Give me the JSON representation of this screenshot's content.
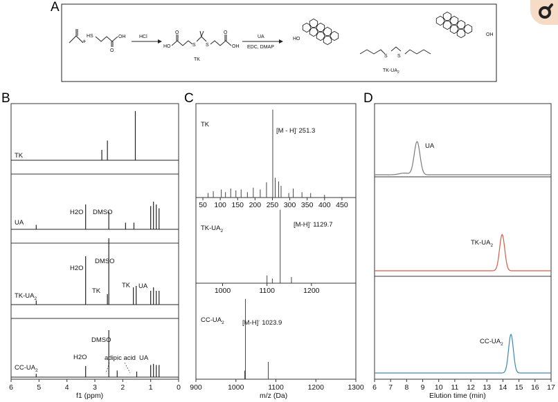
{
  "panels": {
    "a": "A",
    "b": "B",
    "c": "C",
    "d": "D"
  },
  "scheme": {
    "hcl": "HCl",
    "tk": "TK",
    "ua": "UA",
    "reagents": "EDC, DMAP",
    "product": "TK-UA",
    "product_sub": "2",
    "atoms": {
      "ho": "HO",
      "hs": "HS",
      "oh": "OH",
      "o": "O",
      "s": "S",
      "plus": "+"
    }
  },
  "chart_data": [
    {
      "panel": "B",
      "type": "line",
      "title": "",
      "xlabel": "f1 (ppm)",
      "ylabel": "",
      "xlim": [
        6,
        0
      ],
      "xticks": [
        "6",
        "5",
        "4",
        "3",
        "2",
        "1",
        "0"
      ],
      "series": [
        {
          "name": "TK",
          "peaks": [
            {
              "x": 2.75,
              "h": 0.2
            },
            {
              "x": 2.55,
              "h": 0.38
            },
            {
              "x": 1.55,
              "h": 0.95
            }
          ],
          "labels": []
        },
        {
          "name": "UA",
          "peaks": [
            {
              "x": 5.1,
              "h": 0.08
            },
            {
              "x": 3.33,
              "h": 0.45
            },
            {
              "x": 2.5,
              "h": 0.32
            },
            {
              "x": 1.9,
              "h": 0.12
            },
            {
              "x": 1.6,
              "h": 0.12
            },
            {
              "x": 1.0,
              "h": 0.42
            },
            {
              "x": 0.9,
              "h": 0.5
            },
            {
              "x": 0.8,
              "h": 0.45
            },
            {
              "x": 0.7,
              "h": 0.38
            }
          ],
          "labels": [
            "H2O",
            "DMSO"
          ]
        },
        {
          "name": "TK-UA",
          "name_sub": "2",
          "peaks": [
            {
              "x": 5.1,
              "h": 0.06
            },
            {
              "x": 3.33,
              "h": 0.7
            },
            {
              "x": 2.55,
              "h": 0.15
            },
            {
              "x": 2.5,
              "h": 0.96
            },
            {
              "x": 1.62,
              "h": 0.25
            },
            {
              "x": 1.52,
              "h": 0.27
            },
            {
              "x": 1.0,
              "h": 0.2
            },
            {
              "x": 0.9,
              "h": 0.25
            },
            {
              "x": 0.8,
              "h": 0.2
            },
            {
              "x": 0.7,
              "h": 0.2
            }
          ],
          "labels": [
            "H2O",
            "DMSO",
            "TK",
            "TK",
            "UA"
          ]
        },
        {
          "name": "CC-UA",
          "name_sub": "2",
          "peaks": [
            {
              "x": 5.1,
              "h": 0.06
            },
            {
              "x": 3.33,
              "h": 0.2
            },
            {
              "x": 2.5,
              "h": 0.85
            },
            {
              "x": 2.2,
              "h": 0.12
            },
            {
              "x": 1.5,
              "h": 0.1
            },
            {
              "x": 1.0,
              "h": 0.22
            },
            {
              "x": 0.9,
              "h": 0.24
            },
            {
              "x": 0.8,
              "h": 0.22
            },
            {
              "x": 0.7,
              "h": 0.22
            }
          ],
          "labels": [
            "H2O",
            "DMSO",
            "adipic acid",
            "UA"
          ]
        }
      ]
    },
    {
      "panel": "C",
      "type": "bar",
      "title": "",
      "xlabel": "m/z (Da)",
      "ylabel": "",
      "subplots": [
        {
          "name": "TK",
          "annotation": "[M - H]",
          "annotation_sup": "-",
          "annotation_value": "251.3",
          "xlim": [
            30,
            490
          ],
          "xticks": [
            "50",
            "100",
            "150",
            "200",
            "250",
            "300",
            "350",
            "400",
            "450"
          ],
          "peaks": [
            {
              "x": 65,
              "h": 0.05
            },
            {
              "x": 80,
              "h": 0.07
            },
            {
              "x": 103,
              "h": 0.09
            },
            {
              "x": 115,
              "h": 0.06
            },
            {
              "x": 130,
              "h": 0.1
            },
            {
              "x": 145,
              "h": 0.08
            },
            {
              "x": 160,
              "h": 0.09
            },
            {
              "x": 178,
              "h": 0.06
            },
            {
              "x": 195,
              "h": 0.11
            },
            {
              "x": 215,
              "h": 0.09
            },
            {
              "x": 233,
              "h": 0.17
            },
            {
              "x": 251,
              "h": 0.98
            },
            {
              "x": 258,
              "h": 0.22
            },
            {
              "x": 268,
              "h": 0.18
            },
            {
              "x": 275,
              "h": 0.13
            },
            {
              "x": 297,
              "h": 0.05
            },
            {
              "x": 310,
              "h": 0.1
            },
            {
              "x": 335,
              "h": 0.06
            },
            {
              "x": 360,
              "h": 0.05
            },
            {
              "x": 400,
              "h": 0.03
            }
          ]
        },
        {
          "name": "TK-UA",
          "name_sub": "2",
          "annotation": "[M-H]",
          "annotation_sup": "-",
          "annotation_value": "1129.7",
          "xlim": [
            940,
            1300
          ],
          "xticks": [
            "1000",
            "1100",
            "1200"
          ],
          "peaks": [
            {
              "x": 1100,
              "h": 0.1
            },
            {
              "x": 1112,
              "h": 0.06
            },
            {
              "x": 1129.7,
              "h": 0.95
            },
            {
              "x": 1155,
              "h": 0.08
            }
          ]
        },
        {
          "name": "CC-UA",
          "name_sub": "2",
          "annotation": "[M-H]",
          "annotation_sup": "-",
          "annotation_value": "1023.9",
          "xlim": [
            900,
            1300
          ],
          "xticks": [
            "900",
            "1000",
            "1100",
            "1200",
            "1300"
          ],
          "peaks": [
            {
              "x": 1022,
              "h": 0.1
            },
            {
              "x": 1023.9,
              "h": 0.93
            },
            {
              "x": 1081,
              "h": 0.2
            }
          ]
        }
      ]
    },
    {
      "panel": "D",
      "type": "line",
      "title": "",
      "xlabel": "Elution time (min)",
      "ylabel": "",
      "xlim": [
        6,
        17
      ],
      "xticks": [
        "6",
        "7",
        "8",
        "9",
        "10",
        "11",
        "12",
        "13",
        "14",
        "15",
        "16",
        "17"
      ],
      "series": [
        {
          "name": "UA",
          "color": "#7a7a7a",
          "peak_x": 8.65,
          "height": 0.8,
          "shoulder_x": 7.85,
          "shoulder_h": 0.04
        },
        {
          "name": "TK-UA",
          "name_sub": "2",
          "color": "#d65a4a",
          "peak_x": 13.95,
          "height": 0.75
        },
        {
          "name": "CC-UA",
          "name_sub": "2",
          "color": "#3d86b4",
          "peak_x": 14.5,
          "height": 0.8
        }
      ]
    }
  ]
}
